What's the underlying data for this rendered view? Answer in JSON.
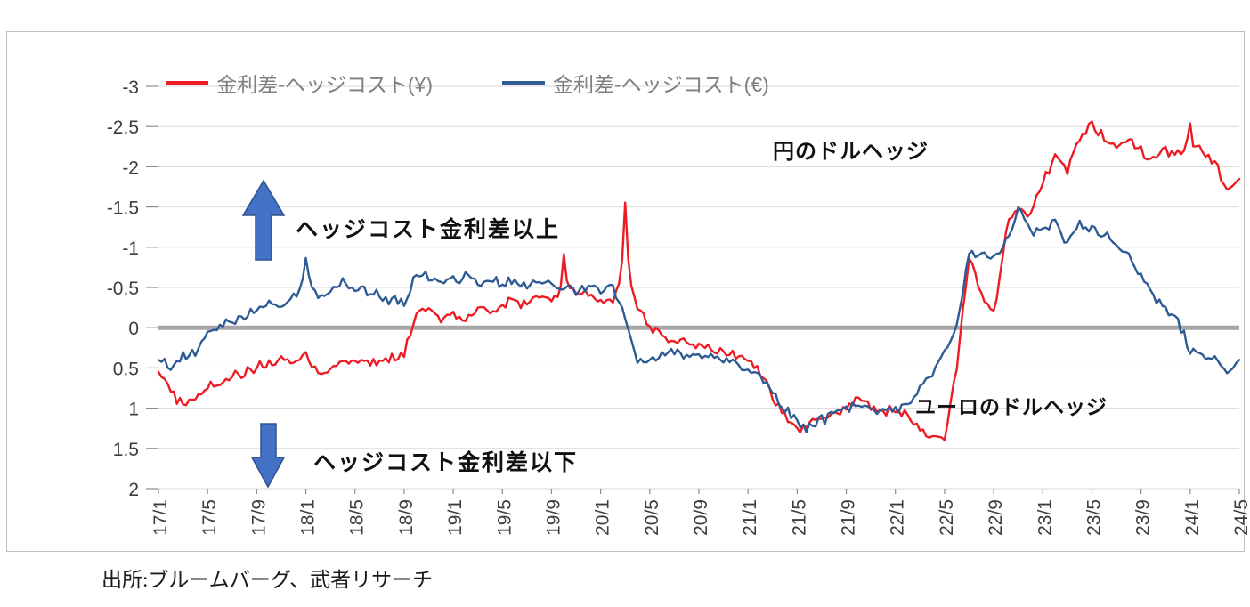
{
  "legend": {
    "items": [
      {
        "label": "金利差-ヘッジコスト(¥)",
        "color": "#ed1c24"
      },
      {
        "label": "金利差-ヘッジコスト(€)",
        "color": "#2f5b95"
      }
    ]
  },
  "annotations": {
    "yen_dollar_hedge": "円のドルヘッジ",
    "hedge_cost_above": "ヘッジコスト金利差以上",
    "euro_dollar_hedge": "ユーロのドルヘッジ",
    "hedge_cost_below": "ヘッジコスト金利差以下"
  },
  "source": "出所:ブルームバーグ、武者リサーチ",
  "chart_data": {
    "type": "line",
    "title": "",
    "x_start": "2017-01",
    "x_end": "2024-05",
    "x_interval": "monthly",
    "x_tick_every": 4,
    "x_tick_labels": [
      "17/1",
      "17/5",
      "17/9",
      "18/1",
      "18/5",
      "18/9",
      "19/1",
      "19/5",
      "19/9",
      "20/1",
      "20/5",
      "20/9",
      "21/1",
      "21/5",
      "21/9",
      "22/1",
      "22/5",
      "22/9",
      "23/1",
      "23/5",
      "23/9",
      "24/1",
      "24/5"
    ],
    "y_ticks": [
      -3,
      -2.5,
      -2,
      -1.5,
      -1,
      -0.5,
      0,
      0.5,
      1,
      1.5,
      2
    ],
    "y_tick_labels": [
      "-3",
      "-2.5",
      "-2",
      "-1.5",
      "-1",
      "-0.5",
      "0",
      "0.5",
      "1",
      "1.5",
      "2"
    ],
    "y_axis_inverted": true,
    "ylim": [
      -3,
      2
    ],
    "grid": true,
    "legend_position": "top",
    "colors": {
      "grid": "#d9d9d9",
      "zero_line": "#a6a6a6",
      "axis": "#8c8c8c",
      "tick_text": "#3d3d3d",
      "arrow_fill": "#4472c4",
      "arrow_stroke": "#2f528f"
    },
    "series": [
      {
        "name": "金利差-ヘッジコスト(¥)",
        "color": "#ed1c24",
        "values": [
          0.55,
          0.8,
          0.95,
          0.85,
          0.75,
          0.65,
          0.6,
          0.55,
          0.5,
          0.45,
          0.4,
          0.45,
          0.35,
          0.55,
          0.5,
          0.42,
          0.38,
          0.45,
          0.42,
          0.38,
          0.3,
          -0.15,
          -0.25,
          -0.1,
          -0.2,
          -0.1,
          -0.25,
          -0.2,
          -0.3,
          -0.35,
          -0.25,
          -0.4,
          -0.35,
          -0.5,
          -0.45,
          -0.4,
          -0.3,
          -0.35,
          -0.8,
          -0.25,
          0.0,
          0.1,
          0.15,
          0.18,
          0.22,
          0.28,
          0.3,
          0.35,
          0.4,
          0.55,
          0.85,
          1.1,
          1.25,
          1.2,
          1.15,
          1.08,
          1.0,
          0.9,
          1.0,
          1.05,
          1.0,
          1.1,
          1.3,
          1.35,
          1.4,
          0.5,
          -0.9,
          -0.4,
          -0.15,
          -1.2,
          -1.5,
          -1.4,
          -1.8,
          -2.1,
          -1.95,
          -2.35,
          -2.5,
          -2.35,
          -2.25,
          -2.35,
          -2.2,
          -2.1,
          -2.2,
          -2.15,
          -2.3,
          -2.2,
          -2.05,
          -1.7,
          -1.85
        ]
      },
      {
        "name": "金利差-ヘッジコスト(€)",
        "color": "#2f5b95",
        "values": [
          0.4,
          0.5,
          0.35,
          0.3,
          0.1,
          -0.05,
          -0.1,
          -0.15,
          -0.2,
          -0.3,
          -0.25,
          -0.35,
          -0.55,
          -0.4,
          -0.45,
          -0.55,
          -0.5,
          -0.45,
          -0.38,
          -0.33,
          -0.3,
          -0.68,
          -0.62,
          -0.58,
          -0.6,
          -0.62,
          -0.55,
          -0.6,
          -0.55,
          -0.58,
          -0.52,
          -0.58,
          -0.52,
          -0.48,
          -0.45,
          -0.5,
          -0.45,
          -0.5,
          -0.1,
          0.4,
          0.45,
          0.35,
          0.3,
          0.35,
          0.38,
          0.35,
          0.4,
          0.45,
          0.5,
          0.6,
          0.8,
          1.0,
          1.2,
          1.25,
          1.15,
          1.05,
          1.0,
          0.92,
          1.0,
          1.0,
          1.05,
          0.95,
          0.75,
          0.55,
          0.35,
          0.0,
          -0.95,
          -0.9,
          -0.85,
          -1.05,
          -1.45,
          -1.2,
          -1.2,
          -1.3,
          -1.05,
          -1.3,
          -1.2,
          -1.15,
          -1.05,
          -0.9,
          -0.65,
          -0.4,
          -0.2,
          -0.1,
          0.3,
          0.35,
          0.38,
          0.55,
          0.4
        ]
      }
    ],
    "spikes": [
      {
        "series": 0,
        "at": 33,
        "peak": -0.95
      },
      {
        "series": 0,
        "at": 38,
        "peak": -1.62
      },
      {
        "series": 0,
        "at": 84,
        "peak": -2.52
      },
      {
        "series": 1,
        "at": 12,
        "peak": -0.88
      },
      {
        "series": 1,
        "at": 70,
        "peak": -1.52
      }
    ]
  }
}
